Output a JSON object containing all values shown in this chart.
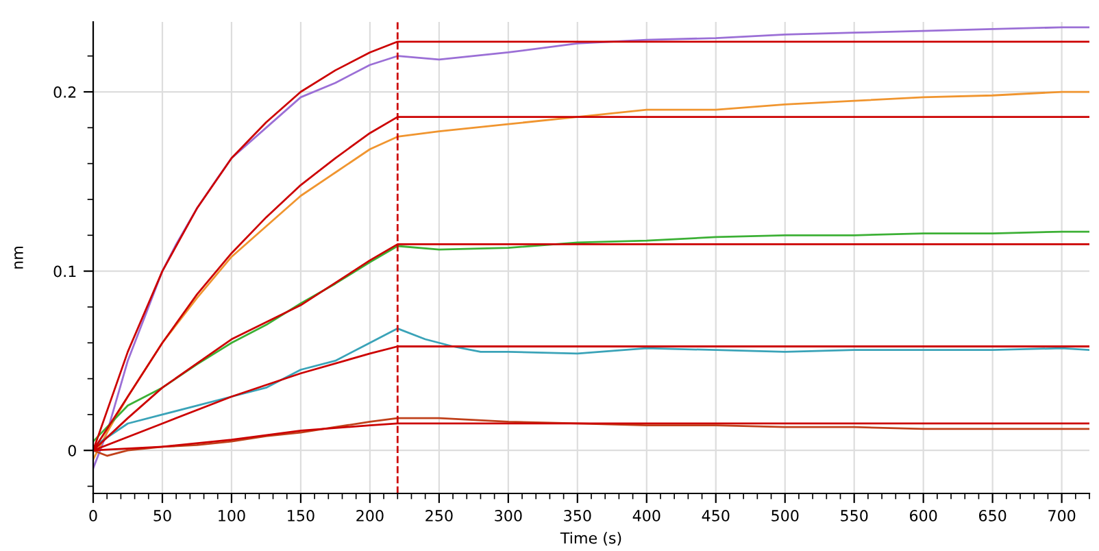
{
  "chart_data": {
    "type": "line",
    "xlabel": "Time (s)",
    "ylabel": "nm",
    "xlim": [
      0,
      720
    ],
    "ylim": [
      -0.024,
      0.239
    ],
    "xticks": [
      0,
      {
        "value": 10,
        "label": null
      },
      {
        "value": 20,
        "label": null
      },
      {
        "value": 30,
        "label": null
      },
      {
        "value": 40,
        "label": null
      },
      50,
      {
        "value": 60,
        "label": null
      },
      {
        "value": 70,
        "label": null
      },
      {
        "value": 80,
        "label": null
      },
      {
        "value": 90,
        "label": null
      },
      100,
      {
        "value": 110,
        "label": null
      },
      {
        "value": 120,
        "label": null
      },
      {
        "value": 130,
        "label": null
      },
      {
        "value": 140,
        "label": null
      },
      150,
      {
        "value": 160,
        "label": null
      },
      {
        "value": 170,
        "label": null
      },
      {
        "value": 180,
        "label": null
      },
      {
        "value": 190,
        "label": null
      },
      200,
      {
        "value": 210,
        "label": null
      },
      {
        "value": 220,
        "label": null
      },
      {
        "value": 230,
        "label": null
      },
      {
        "value": 240,
        "label": null
      },
      250,
      {
        "value": 260,
        "label": null
      },
      {
        "value": 270,
        "label": null
      },
      {
        "value": 280,
        "label": null
      },
      {
        "value": 290,
        "label": null
      },
      300,
      {
        "value": 310,
        "label": null
      },
      {
        "value": 320,
        "label": null
      },
      {
        "value": 330,
        "label": null
      },
      {
        "value": 340,
        "label": null
      },
      350,
      {
        "value": 360,
        "label": null
      },
      {
        "value": 370,
        "label": null
      },
      {
        "value": 380,
        "label": null
      },
      {
        "value": 390,
        "label": null
      },
      400,
      {
        "value": 410,
        "label": null
      },
      {
        "value": 420,
        "label": null
      },
      {
        "value": 430,
        "label": null
      },
      {
        "value": 440,
        "label": null
      },
      450,
      {
        "value": 460,
        "label": null
      },
      {
        "value": 470,
        "label": null
      },
      {
        "value": 480,
        "label": null
      },
      {
        "value": 490,
        "label": null
      },
      500,
      {
        "value": 510,
        "label": null
      },
      {
        "value": 520,
        "label": null
      },
      {
        "value": 530,
        "label": null
      },
      {
        "value": 540,
        "label": null
      },
      550,
      {
        "value": 560,
        "label": null
      },
      {
        "value": 570,
        "label": null
      },
      {
        "value": 580,
        "label": null
      },
      {
        "value": 590,
        "label": null
      },
      600,
      {
        "value": 610,
        "label": null
      },
      {
        "value": 620,
        "label": null
      },
      {
        "value": 630,
        "label": null
      },
      {
        "value": 640,
        "label": null
      },
      650,
      {
        "value": 660,
        "label": null
      },
      {
        "value": 670,
        "label": null
      },
      {
        "value": 680,
        "label": null
      },
      {
        "value": 690,
        "label": null
      },
      700,
      {
        "value": 710,
        "label": null
      },
      {
        "value": 720,
        "label": null
      }
    ],
    "yticks": [
      {
        "value": -0.02,
        "label": null
      },
      0,
      {
        "value": 0.02,
        "label": null
      },
      {
        "value": 0.04,
        "label": null
      },
      {
        "value": 0.06,
        "label": null
      },
      {
        "value": 0.08,
        "label": null
      },
      0.1,
      {
        "value": 0.12,
        "label": null
      },
      {
        "value": 0.14,
        "label": null
      },
      {
        "value": 0.16,
        "label": null
      },
      {
        "value": 0.18,
        "label": null
      },
      0.2,
      {
        "value": 0.22,
        "label": null
      }
    ],
    "grid": true,
    "legend": false,
    "marker": "none",
    "line_style": "solid",
    "series": [
      {
        "color": "#9b6fd6",
        "x": [
          0,
          10,
          25,
          40,
          50,
          60,
          75,
          90,
          100,
          125,
          150,
          175,
          200,
          220,
          250,
          300,
          350,
          400,
          450,
          500,
          550,
          600,
          650,
          700,
          720
        ],
        "values": [
          -0.01,
          0.01,
          0.05,
          0.08,
          0.1,
          0.115,
          0.135,
          0.152,
          0.163,
          0.18,
          0.197,
          0.205,
          0.215,
          0.22,
          0.218,
          0.222,
          0.227,
          0.229,
          0.23,
          0.232,
          0.233,
          0.234,
          0.235,
          0.236,
          0.236
        ]
      },
      {
        "color": "#f0952f",
        "x": [
          0,
          10,
          25,
          50,
          75,
          100,
          125,
          150,
          175,
          200,
          220,
          250,
          300,
          350,
          400,
          450,
          500,
          550,
          600,
          650,
          700,
          720
        ],
        "values": [
          -0.005,
          0.01,
          0.03,
          0.06,
          0.085,
          0.108,
          0.125,
          0.142,
          0.155,
          0.168,
          0.175,
          0.178,
          0.182,
          0.186,
          0.19,
          0.19,
          0.193,
          0.195,
          0.197,
          0.198,
          0.2,
          0.2
        ]
      },
      {
        "color": "#3cb035",
        "x": [
          0,
          25,
          50,
          75,
          100,
          125,
          150,
          175,
          200,
          220,
          250,
          300,
          350,
          400,
          450,
          500,
          550,
          600,
          650,
          700,
          720
        ],
        "values": [
          0.005,
          0.025,
          0.035,
          0.048,
          0.06,
          0.07,
          0.082,
          0.093,
          0.105,
          0.114,
          0.112,
          0.113,
          0.116,
          0.117,
          0.119,
          0.12,
          0.12,
          0.121,
          0.121,
          0.122,
          0.122
        ]
      },
      {
        "color": "#3aa3b8",
        "x": [
          0,
          25,
          50,
          75,
          100,
          125,
          150,
          175,
          200,
          220,
          240,
          260,
          280,
          300,
          350,
          400,
          450,
          500,
          550,
          600,
          650,
          700,
          720
        ],
        "values": [
          0.002,
          0.015,
          0.02,
          0.025,
          0.03,
          0.035,
          0.045,
          0.05,
          0.06,
          0.068,
          0.062,
          0.058,
          0.055,
          0.055,
          0.054,
          0.057,
          0.056,
          0.055,
          0.056,
          0.056,
          0.056,
          0.057,
          0.056
        ]
      },
      {
        "color": "#c0401a",
        "x": [
          0,
          10,
          25,
          50,
          75,
          100,
          125,
          150,
          175,
          200,
          220,
          250,
          300,
          350,
          400,
          450,
          500,
          550,
          600,
          650,
          700,
          720
        ],
        "values": [
          0,
          -0.003,
          0,
          0.002,
          0.003,
          0.005,
          0.008,
          0.01,
          0.013,
          0.016,
          0.018,
          0.018,
          0.016,
          0.015,
          0.014,
          0.014,
          0.013,
          0.013,
          0.012,
          0.012,
          0.012,
          0.012
        ]
      },
      {
        "color": "#cc0000",
        "x": [
          0,
          25,
          50,
          75,
          100,
          125,
          150,
          175,
          200,
          220,
          720
        ],
        "values": [
          0,
          0.055,
          0.1,
          0.135,
          0.163,
          0.183,
          0.2,
          0.212,
          0.222,
          0.228,
          0.228
        ]
      },
      {
        "color": "#cc0000",
        "x": [
          0,
          25,
          50,
          75,
          100,
          125,
          150,
          175,
          200,
          220,
          720
        ],
        "values": [
          0,
          0.03,
          0.06,
          0.087,
          0.11,
          0.13,
          0.148,
          0.163,
          0.177,
          0.186,
          0.186
        ]
      },
      {
        "color": "#cc0000",
        "x": [
          0,
          25,
          50,
          100,
          150,
          200,
          220,
          720
        ],
        "values": [
          0,
          0.018,
          0.035,
          0.062,
          0.081,
          0.106,
          0.115,
          0.115
        ]
      },
      {
        "color": "#cc0000",
        "x": [
          0,
          50,
          100,
          150,
          200,
          220,
          720
        ],
        "values": [
          0,
          0.015,
          0.03,
          0.043,
          0.054,
          0.058,
          0.058
        ]
      },
      {
        "color": "#cc0000",
        "x": [
          0,
          50,
          100,
          150,
          200,
          220,
          720
        ],
        "values": [
          0,
          0.002,
          0.006,
          0.011,
          0.014,
          0.015,
          0.015
        ]
      }
    ],
    "ref_lines": [
      {
        "axis": "x",
        "value": 220,
        "color": "#cc0000",
        "line_style": "dashed"
      }
    ]
  }
}
